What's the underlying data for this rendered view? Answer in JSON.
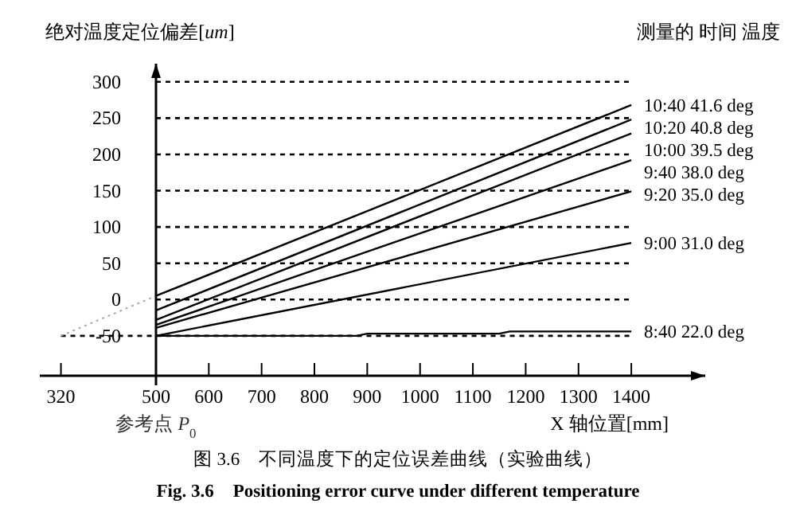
{
  "chart_data": {
    "type": "line",
    "xlabel": "X 轴位置[mm]",
    "ylabel": "绝对温度定位偏差[*um*]",
    "legend_title": "测量的 时间 温度",
    "xlim": [
      280,
      1540
    ],
    "ylim": [
      -105,
      325
    ],
    "xticks": [
      320,
      500,
      600,
      700,
      800,
      900,
      1000,
      1100,
      1200,
      1300,
      1400
    ],
    "yticks": [
      -50,
      0,
      50,
      100,
      150,
      200,
      250,
      300
    ],
    "grid": "y",
    "legend": false,
    "marker": "none",
    "series": [
      {
        "name": "10:40 41.6 deg",
        "color": "#000000",
        "x": [
          500,
          1400
        ],
        "values": [
          5,
          268
        ]
      },
      {
        "name": "10:20 40.8 deg",
        "color": "#000000",
        "x": [
          500,
          1400
        ],
        "values": [
          -15,
          248
        ]
      },
      {
        "name": "10:00 39.5 deg",
        "color": "#000000",
        "x": [
          500,
          1400
        ],
        "values": [
          -28,
          229
        ]
      },
      {
        "name": "9:40 38.0 deg",
        "color": "#000000",
        "x": [
          500,
          1400
        ],
        "values": [
          -35,
          192
        ]
      },
      {
        "name": "9:20 35.0 deg",
        "color": "#000000",
        "x": [
          500,
          1400
        ],
        "values": [
          -39,
          149
        ]
      },
      {
        "name": "9:00 31.0 deg",
        "color": "#000000",
        "x": [
          500,
          1400
        ],
        "values": [
          -50,
          78
        ]
      },
      {
        "name": "8:40 22.0 deg",
        "color": "#000000",
        "x": [
          500,
          880,
          900,
          1150,
          1170,
          1400
        ],
        "values": [
          -50,
          -50,
          -47,
          -47,
          -44,
          -44
        ]
      },
      {
        "color": "#aaaaaa",
        "line_style": "dotted",
        "x": [
          320,
          500
        ],
        "values": [
          -50,
          5
        ]
      }
    ],
    "annotations": [
      "参考点 *P*$_{0}$",
      "图 3.6　不同温度下的定位误差曲线（实验曲线）",
      "Fig. 3.6　Positioning error curve under different temperature"
    ]
  }
}
